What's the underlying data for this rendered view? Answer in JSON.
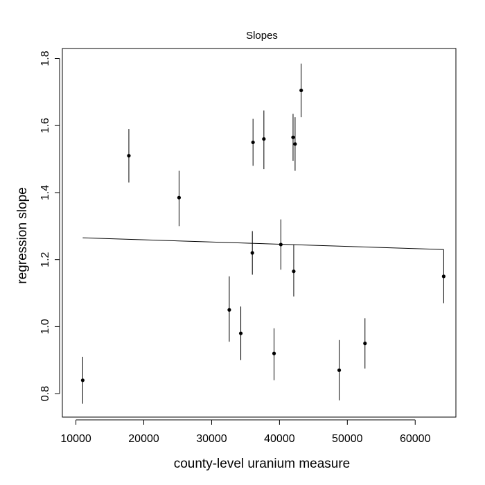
{
  "chart_data": {
    "type": "scatter",
    "title": "Slopes",
    "xlabel": "county-level uranium measure",
    "ylabel": "regression slope",
    "xlim": [
      8000,
      66000
    ],
    "ylim": [
      0.73,
      1.83
    ],
    "x_ticks": [
      10000,
      20000,
      30000,
      40000,
      50000,
      60000
    ],
    "x_tick_labels": [
      "10000",
      "20000",
      "30000",
      "40000",
      "50000",
      "60000"
    ],
    "y_ticks": [
      0.8,
      1.0,
      1.2,
      1.4,
      1.6,
      1.8
    ],
    "y_tick_labels": [
      "0.8",
      "1.0",
      "1.2",
      "1.4",
      "1.6",
      "1.8"
    ],
    "grid": false,
    "points": [
      {
        "x": 11000,
        "y": 0.84,
        "lo": 0.77,
        "hi": 0.91
      },
      {
        "x": 17800,
        "y": 1.51,
        "lo": 1.43,
        "hi": 1.59
      },
      {
        "x": 25200,
        "y": 1.385,
        "lo": 1.3,
        "hi": 1.465
      },
      {
        "x": 32600,
        "y": 1.05,
        "lo": 0.955,
        "hi": 1.15
      },
      {
        "x": 34300,
        "y": 0.98,
        "lo": 0.9,
        "hi": 1.06
      },
      {
        "x": 36000,
        "y": 1.22,
        "lo": 1.155,
        "hi": 1.285
      },
      {
        "x": 36100,
        "y": 1.55,
        "lo": 1.48,
        "hi": 1.62
      },
      {
        "x": 37700,
        "y": 1.56,
        "lo": 1.47,
        "hi": 1.645
      },
      {
        "x": 39200,
        "y": 0.92,
        "lo": 0.84,
        "hi": 0.995
      },
      {
        "x": 40200,
        "y": 1.245,
        "lo": 1.17,
        "hi": 1.32
      },
      {
        "x": 42000,
        "y": 1.565,
        "lo": 1.495,
        "hi": 1.635
      },
      {
        "x": 42100,
        "y": 1.165,
        "lo": 1.09,
        "hi": 1.245
      },
      {
        "x": 42300,
        "y": 1.545,
        "lo": 1.465,
        "hi": 1.625
      },
      {
        "x": 43200,
        "y": 1.705,
        "lo": 1.625,
        "hi": 1.785
      },
      {
        "x": 48800,
        "y": 0.87,
        "lo": 0.78,
        "hi": 0.96
      },
      {
        "x": 52600,
        "y": 0.95,
        "lo": 0.875,
        "hi": 1.025
      },
      {
        "x": 64200,
        "y": 1.15,
        "lo": 1.07,
        "hi": 1.23
      }
    ],
    "regression_line": {
      "x": [
        11000,
        64200
      ],
      "y": [
        1.265,
        1.23
      ]
    },
    "colors": {
      "points": "#000000",
      "lines": "#000000",
      "frame": "#000000"
    }
  }
}
